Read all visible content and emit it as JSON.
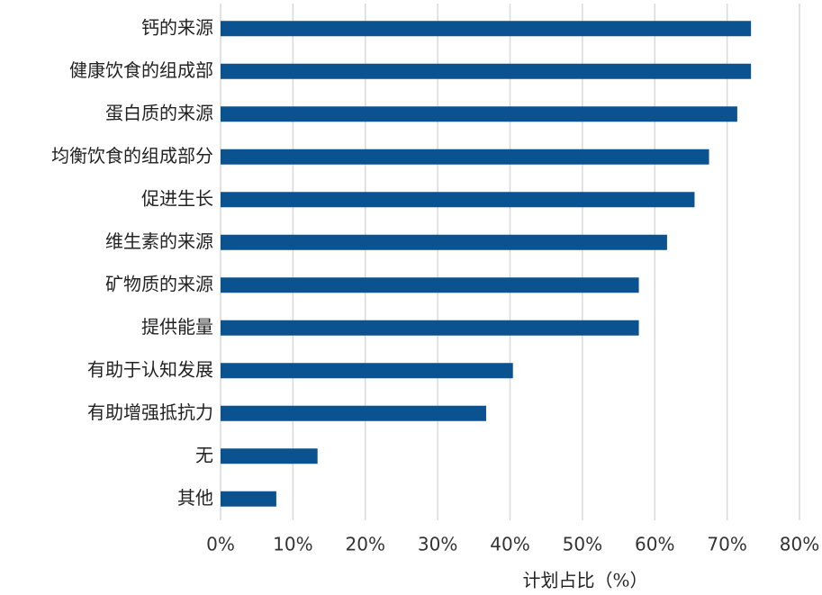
{
  "chart_data": {
    "type": "hbar",
    "x_label": "计划占比（%）",
    "categories": [
      "钙的来源",
      "健康饮食的组成部",
      "蛋白质的来源",
      "均衡饮食的组成部分",
      "促进生长",
      "维生素的来源",
      "矿物质的来源",
      "提供能量",
      "有助于认知发展",
      "有助增强抵抗力",
      "无",
      "其他"
    ],
    "values": [
      73.3,
      73.3,
      71.4,
      67.5,
      65.5,
      61.7,
      57.8,
      57.8,
      40.4,
      36.7,
      13.4,
      7.7
    ],
    "color": "#0b5290",
    "xlim": [
      0,
      80
    ],
    "xticks": [
      {
        "value": 0,
        "label": "0%"
      },
      {
        "value": 10,
        "label": "10%"
      },
      {
        "value": 20,
        "label": "20%"
      },
      {
        "value": 30,
        "label": "30%"
      },
      {
        "value": 40,
        "label": "40%"
      },
      {
        "value": 50,
        "label": "50%"
      },
      {
        "value": 60,
        "label": "60%"
      },
      {
        "value": 70,
        "label": "70%"
      },
      {
        "value": 80,
        "label": "80%"
      }
    ],
    "grid": true
  }
}
